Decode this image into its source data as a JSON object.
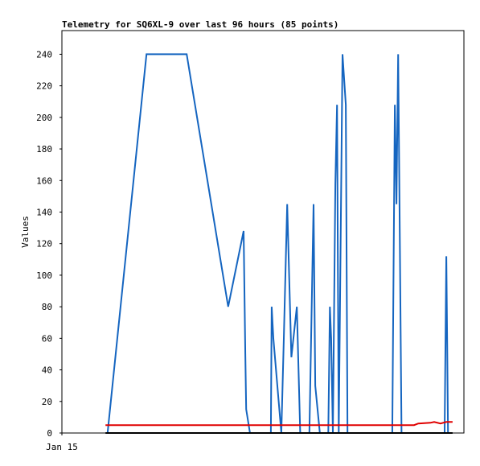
{
  "chart_data": {
    "type": "line",
    "title": "Telemetry for SQ6XL-9 over last 96 hours (85 points)",
    "y_label": "Values",
    "xlim": [
      0,
      96
    ],
    "xticks": [
      {
        "value": 0,
        "label": "Jan 15"
      }
    ],
    "ylim": [
      0,
      255
    ],
    "yticks": [
      0,
      20,
      40,
      60,
      80,
      100,
      120,
      140,
      160,
      180,
      200,
      220,
      240
    ],
    "grid": false,
    "series": [
      {
        "color": "#1565c0",
        "x": [
          10.9,
          20.2,
          29.8,
          39.7,
          43.4,
          43.8,
          44.0,
          44.9,
          49.9,
          50.1,
          50.5,
          52.4,
          53.0,
          53.8,
          54.8,
          56.1,
          56.9,
          59.1,
          60.1,
          60.5,
          61.6,
          63.6,
          64.0,
          64.3,
          64.7,
          65.3,
          65.7,
          66.1,
          67.0,
          67.8,
          68.2,
          78.9,
          79.5,
          79.9,
          80.3,
          80.7,
          81.1,
          91.4,
          91.8,
          92.0,
          92.2
        ],
        "values": [
          0,
          240,
          240,
          80,
          128,
          50,
          15,
          0,
          0,
          80,
          60,
          0,
          60,
          145,
          48,
          80,
          0,
          0,
          145,
          30,
          0,
          0,
          80,
          60,
          0,
          158,
          208,
          0,
          240,
          208,
          0,
          0,
          208,
          145,
          240,
          122,
          0,
          0,
          112,
          56,
          0
        ]
      },
      {
        "color": "#e00000",
        "x": [
          10.4,
          56.3,
          57.2,
          84.1,
          85.1,
          88.0,
          88.9,
          90.4,
          91.8,
          93.3
        ],
        "values": [
          5,
          5,
          5,
          5,
          6,
          6.5,
          7,
          6,
          7,
          7
        ]
      },
      {
        "color": "#000000",
        "x": [
          10.4,
          93.3
        ],
        "values": [
          0,
          0
        ]
      }
    ]
  }
}
